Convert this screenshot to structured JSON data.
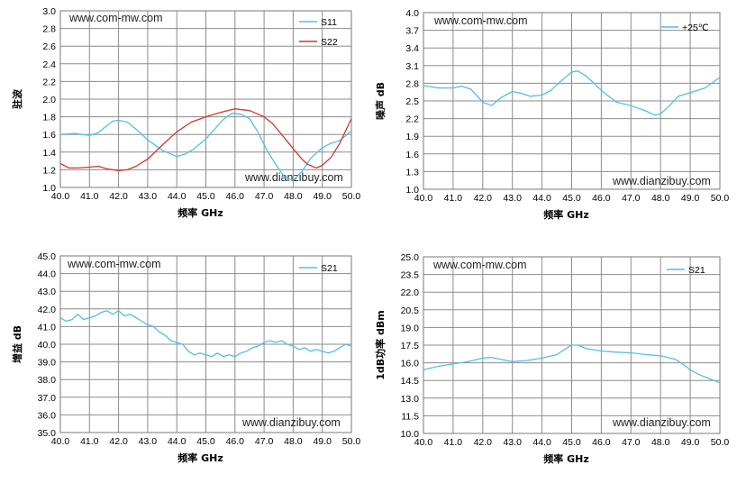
{
  "watermarks": {
    "top": "www.com-mw.com",
    "bottom": "www.dianzibuy.com"
  },
  "chart_data": [
    {
      "type": "line",
      "xlabel": "频率  GHz",
      "ylabel": "驻波",
      "xlim": [
        40.0,
        50.0
      ],
      "ylim": [
        1.0,
        3.0
      ],
      "x_ticks": [
        "40.0",
        "41.0",
        "42.0",
        "43.0",
        "44.0",
        "45.0",
        "46.0",
        "47.0",
        "48.0",
        "49.0",
        "50.0"
      ],
      "y_ticks": [
        "1.0",
        "1.2",
        "1.4",
        "1.6",
        "1.8",
        "2.0",
        "2.2",
        "2.4",
        "2.6",
        "2.8",
        "3.0"
      ],
      "grid": true,
      "legend_position": "top-right",
      "series": [
        {
          "name": "S11",
          "color": "#4fc1e8",
          "x": [
            40.0,
            40.5,
            41.0,
            41.3,
            41.6,
            41.8,
            42.0,
            42.3,
            42.6,
            43.0,
            43.5,
            44.0,
            44.3,
            44.6,
            45.0,
            45.3,
            45.6,
            45.9,
            46.2,
            46.5,
            46.8,
            47.1,
            47.4,
            47.7,
            48.0,
            48.3,
            48.6,
            49.0,
            49.3,
            49.6,
            50.0
          ],
          "y": [
            1.6,
            1.61,
            1.59,
            1.62,
            1.7,
            1.75,
            1.76,
            1.74,
            1.66,
            1.54,
            1.42,
            1.35,
            1.38,
            1.44,
            1.55,
            1.66,
            1.77,
            1.84,
            1.83,
            1.78,
            1.62,
            1.42,
            1.26,
            1.12,
            1.08,
            1.18,
            1.33,
            1.45,
            1.5,
            1.53,
            1.64
          ]
        },
        {
          "name": "S22",
          "color": "#d9342b",
          "x": [
            40.0,
            40.3,
            40.6,
            41.0,
            41.3,
            41.6,
            42.0,
            42.3,
            42.6,
            43.0,
            43.5,
            44.0,
            44.5,
            45.0,
            45.5,
            46.0,
            46.5,
            47.0,
            47.3,
            47.6,
            48.0,
            48.3,
            48.5,
            48.8,
            49.0,
            49.3,
            49.6,
            50.0
          ],
          "y": [
            1.27,
            1.22,
            1.22,
            1.23,
            1.24,
            1.21,
            1.19,
            1.2,
            1.24,
            1.32,
            1.48,
            1.63,
            1.74,
            1.8,
            1.85,
            1.89,
            1.87,
            1.8,
            1.72,
            1.6,
            1.44,
            1.32,
            1.26,
            1.22,
            1.25,
            1.34,
            1.5,
            1.78
          ]
        }
      ]
    },
    {
      "type": "line",
      "xlabel": "频率  GHz",
      "ylabel": "噪声 dB",
      "xlim": [
        40.0,
        50.0
      ],
      "ylim": [
        1.0,
        4.0
      ],
      "x_ticks": [
        "40.0",
        "41.0",
        "42.0",
        "43.0",
        "44.0",
        "45.0",
        "46.0",
        "47.0",
        "48.0",
        "49.0",
        "50.0"
      ],
      "y_ticks": [
        "1.0",
        "1.3",
        "1.6",
        "1.9",
        "2.2",
        "2.5",
        "2.8",
        "3.1",
        "3.4",
        "3.7",
        "4.0"
      ],
      "grid": true,
      "legend_position": "top-right",
      "series": [
        {
          "name": "+25℃",
          "color": "#4fc1e8",
          "x": [
            40.0,
            40.5,
            41.0,
            41.3,
            41.6,
            42.0,
            42.3,
            42.6,
            43.0,
            43.3,
            43.6,
            44.0,
            44.3,
            44.6,
            45.0,
            45.2,
            45.5,
            46.0,
            46.5,
            47.0,
            47.5,
            47.8,
            48.0,
            48.3,
            48.6,
            49.0,
            49.5,
            50.0
          ],
          "y": [
            2.76,
            2.72,
            2.72,
            2.75,
            2.7,
            2.48,
            2.42,
            2.55,
            2.66,
            2.63,
            2.58,
            2.6,
            2.68,
            2.82,
            2.99,
            3.01,
            2.92,
            2.68,
            2.48,
            2.42,
            2.33,
            2.26,
            2.28,
            2.42,
            2.58,
            2.64,
            2.72,
            2.9
          ]
        }
      ]
    },
    {
      "type": "line",
      "xlabel": "频率  GHz",
      "ylabel": "增益 dB",
      "xlim": [
        40.0,
        50.0
      ],
      "ylim": [
        35.0,
        45.0
      ],
      "x_ticks": [
        "40.0",
        "41.0",
        "42.0",
        "43.0",
        "44.0",
        "45.0",
        "46.0",
        "47.0",
        "48.0",
        "49.0",
        "50.0"
      ],
      "y_ticks": [
        "35.0",
        "36.0",
        "37.0",
        "38.0",
        "39.0",
        "40.0",
        "41.0",
        "42.0",
        "43.0",
        "44.0",
        "45.0"
      ],
      "grid": true,
      "legend_position": "top-right",
      "series": [
        {
          "name": "S21",
          "color": "#4fc1e8",
          "x": [
            40.0,
            40.2,
            40.4,
            40.6,
            40.8,
            41.0,
            41.2,
            41.4,
            41.6,
            41.8,
            42.0,
            42.2,
            42.4,
            42.6,
            42.8,
            43.0,
            43.2,
            43.4,
            43.6,
            43.8,
            44.0,
            44.2,
            44.4,
            44.6,
            44.8,
            45.0,
            45.2,
            45.4,
            45.6,
            45.8,
            46.0,
            46.2,
            46.4,
            46.6,
            46.8,
            47.0,
            47.2,
            47.4,
            47.6,
            47.8,
            48.0,
            48.2,
            48.4,
            48.6,
            48.8,
            49.0,
            49.2,
            49.4,
            49.6,
            49.8,
            50.0
          ],
          "y": [
            41.5,
            41.3,
            41.4,
            41.7,
            41.4,
            41.5,
            41.6,
            41.8,
            41.9,
            41.7,
            41.9,
            41.6,
            41.7,
            41.5,
            41.3,
            41.1,
            41.0,
            40.7,
            40.5,
            40.2,
            40.1,
            40.0,
            39.6,
            39.4,
            39.5,
            39.4,
            39.3,
            39.5,
            39.3,
            39.4,
            39.3,
            39.5,
            39.6,
            39.8,
            39.9,
            40.1,
            40.2,
            40.1,
            40.2,
            40.0,
            39.9,
            39.7,
            39.8,
            39.6,
            39.7,
            39.6,
            39.5,
            39.6,
            39.8,
            40.0,
            39.9
          ]
        }
      ]
    },
    {
      "type": "line",
      "xlabel": "频率  GHz",
      "ylabel": "1dB功率 dBm",
      "xlim": [
        40.0,
        50.0
      ],
      "ylim": [
        10.0,
        25.0
      ],
      "x_ticks": [
        "40.0",
        "41.0",
        "42.0",
        "43.0",
        "44.0",
        "45.0",
        "46.0",
        "47.0",
        "48.0",
        "49.0",
        "50.0"
      ],
      "y_ticks": [
        "10.0",
        "11.5",
        "13.0",
        "14.5",
        "16.0",
        "17.5",
        "19.0",
        "20.5",
        "22.0",
        "23.5",
        "25.0"
      ],
      "grid": true,
      "legend_position": "top-right",
      "series": [
        {
          "name": "S21",
          "color": "#4fc1e8",
          "x": [
            40.0,
            40.5,
            41.0,
            41.5,
            42.0,
            42.3,
            42.6,
            43.0,
            43.5,
            44.0,
            44.5,
            44.8,
            45.0,
            45.2,
            45.5,
            46.0,
            46.5,
            47.0,
            47.5,
            48.0,
            48.5,
            48.8,
            49.0,
            49.3,
            49.6,
            50.0
          ],
          "y": [
            15.4,
            15.7,
            15.9,
            16.1,
            16.4,
            16.45,
            16.3,
            16.1,
            16.2,
            16.4,
            16.7,
            17.2,
            17.5,
            17.5,
            17.2,
            17.0,
            16.9,
            16.85,
            16.7,
            16.6,
            16.3,
            15.8,
            15.4,
            15.0,
            14.7,
            14.3
          ]
        }
      ]
    }
  ]
}
